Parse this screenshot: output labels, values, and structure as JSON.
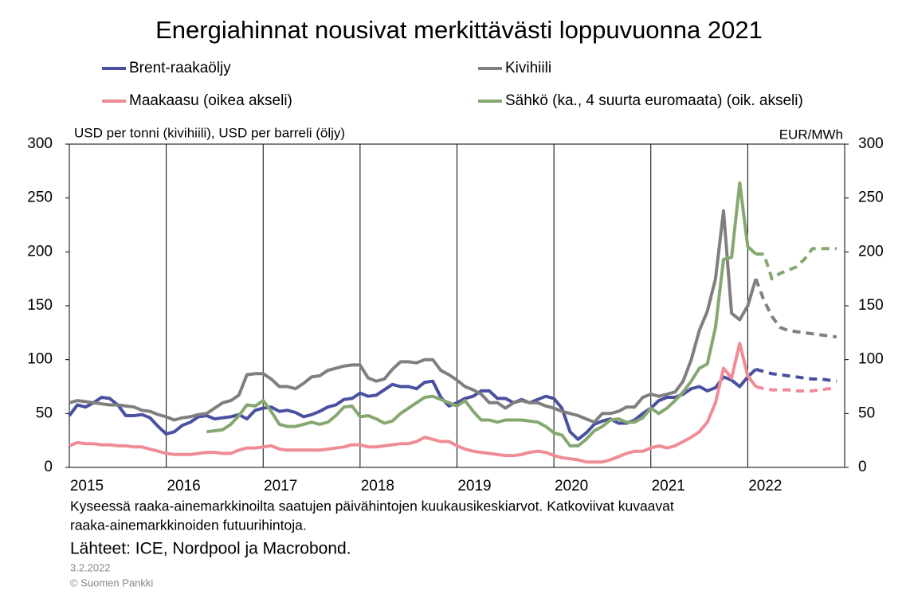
{
  "chart_data": {
    "type": "line",
    "title": "Energiahinnat nousivat merkittävästi loppuvuonna 2021",
    "ylabel": "USD per tonni (kivihiili), USD per barreli (öljy)",
    "y2label": "EUR/MWh",
    "notes": [
      "Kyseessä raaka-ainemarkkinoilta  saatujen päivähintojen kuukausikeskiarvot.  Katkoviivat kuvaavat",
      "raaka-ainemarkkinoiden  futuurihintoja."
    ],
    "source": "Lähteet: ICE, Nordpool ja Macrobond.",
    "date": "3.2.2022",
    "copyright": "© Suomen  Pankki",
    "xlim": [
      2015,
      2023
    ],
    "xticks": [
      2015,
      2016,
      2017,
      2018,
      2019,
      2020,
      2021,
      2022
    ],
    "ylim": [
      0,
      300
    ],
    "yticks": [
      0,
      50,
      100,
      150,
      200,
      250,
      300
    ],
    "y2lim": [
      0,
      300
    ],
    "y2ticks": [
      0,
      50,
      100,
      150,
      200,
      250,
      300
    ],
    "grid": "x",
    "futures_from": 2022.083,
    "x": [
      2015,
      2015.083,
      2015.167,
      2015.25,
      2015.333,
      2015.417,
      2015.5,
      2015.583,
      2015.667,
      2015.75,
      2015.833,
      2015.917,
      2016,
      2016.083,
      2016.167,
      2016.25,
      2016.333,
      2016.417,
      2016.5,
      2016.583,
      2016.667,
      2016.75,
      2016.833,
      2016.917,
      2017,
      2017.083,
      2017.167,
      2017.25,
      2017.333,
      2017.417,
      2017.5,
      2017.583,
      2017.667,
      2017.75,
      2017.833,
      2017.917,
      2018,
      2018.083,
      2018.167,
      2018.25,
      2018.333,
      2018.417,
      2018.5,
      2018.583,
      2018.667,
      2018.75,
      2018.833,
      2018.917,
      2019,
      2019.083,
      2019.167,
      2019.25,
      2019.333,
      2019.417,
      2019.5,
      2019.583,
      2019.667,
      2019.75,
      2019.833,
      2019.917,
      2020,
      2020.083,
      2020.167,
      2020.25,
      2020.333,
      2020.417,
      2020.5,
      2020.583,
      2020.667,
      2020.75,
      2020.833,
      2020.917,
      2021,
      2021.083,
      2021.167,
      2021.25,
      2021.333,
      2021.417,
      2021.5,
      2021.583,
      2021.667,
      2021.75,
      2021.833,
      2021.917,
      2022,
      2022.083,
      2022.167,
      2022.25,
      2022.333,
      2022.417,
      2022.5,
      2022.583,
      2022.667,
      2022.75,
      2022.833,
      2022.917
    ],
    "series": [
      {
        "name": "Brent-raakaöljy",
        "color": "#4a50a0",
        "values": [
          48,
          58,
          56,
          60,
          65,
          64,
          58,
          48,
          48,
          49,
          46,
          38,
          31,
          33,
          39,
          42,
          47,
          48,
          45,
          46,
          47,
          49,
          45,
          53,
          55,
          56,
          52,
          53,
          51,
          47,
          49,
          52,
          56,
          58,
          63,
          64,
          69,
          66,
          67,
          72,
          77,
          75,
          75,
          73,
          79,
          80,
          65,
          57,
          60,
          64,
          66,
          71,
          71,
          64,
          64,
          60,
          63,
          60,
          63,
          66,
          64,
          55,
          33,
          26,
          32,
          40,
          43,
          45,
          41,
          41,
          44,
          50,
          55,
          62,
          65,
          65,
          68,
          73,
          75,
          71,
          74,
          84,
          81,
          75,
          84,
          91,
          89,
          87,
          86,
          85,
          84,
          83,
          82,
          82,
          81,
          80
        ]
      },
      {
        "name": "Kivihiili",
        "color": "#7f7f7f",
        "values": [
          60,
          62,
          61,
          60,
          59,
          58,
          58,
          57,
          56,
          53,
          52,
          49,
          47,
          44,
          46,
          47,
          49,
          50,
          55,
          60,
          62,
          67,
          86,
          87,
          87,
          82,
          75,
          75,
          73,
          78,
          84,
          85,
          90,
          92,
          94,
          95,
          95,
          83,
          80,
          82,
          91,
          98,
          98,
          97,
          100,
          100,
          90,
          86,
          81,
          75,
          72,
          68,
          60,
          60,
          55,
          60,
          62,
          60,
          60,
          57,
          55,
          52,
          50,
          48,
          45,
          42,
          50,
          50,
          52,
          56,
          56,
          65,
          68,
          66,
          68,
          70,
          80,
          100,
          127,
          145,
          175,
          238,
          143,
          137,
          150,
          175,
          155,
          140,
          130,
          127,
          126,
          125,
          124,
          123,
          122,
          121
        ]
      },
      {
        "name": "Maakaasu (oikea akseli)",
        "color": "#f08c96",
        "axis": "y2",
        "values": [
          20,
          23,
          22,
          22,
          21,
          21,
          20,
          20,
          19,
          19,
          17,
          15,
          13,
          12,
          12,
          12,
          13,
          14,
          14,
          13,
          13,
          16,
          18,
          18,
          19,
          20,
          17,
          16,
          16,
          16,
          16,
          16,
          17,
          18,
          19,
          21,
          21,
          19,
          19,
          20,
          21,
          22,
          22,
          24,
          28,
          26,
          24,
          24,
          20,
          17,
          15,
          14,
          13,
          12,
          11,
          11,
          12,
          14,
          15,
          14,
          11,
          9,
          8,
          7,
          5,
          5,
          5,
          7,
          10,
          13,
          15,
          15,
          18,
          20,
          18,
          20,
          24,
          28,
          33,
          42,
          60,
          92,
          83,
          115,
          85,
          75,
          73,
          72,
          72,
          72,
          71,
          71,
          71,
          72,
          73,
          73
        ]
      },
      {
        "name": "Sähkö (ka., 4 suurta euromaata) (oik. akseli)",
        "color": "#84a870",
        "axis": "y2",
        "values": [
          null,
          null,
          null,
          null,
          null,
          null,
          null,
          null,
          null,
          null,
          null,
          null,
          null,
          null,
          null,
          null,
          null,
          33,
          34,
          35,
          40,
          48,
          58,
          57,
          62,
          52,
          40,
          38,
          38,
          40,
          42,
          40,
          42,
          48,
          56,
          57,
          47,
          48,
          45,
          41,
          43,
          50,
          55,
          60,
          65,
          66,
          63,
          60,
          57,
          62,
          52,
          44,
          44,
          42,
          44,
          44,
          44,
          43,
          42,
          38,
          32,
          30,
          20,
          20,
          26,
          34,
          38,
          44,
          45,
          42,
          42,
          46,
          55,
          50,
          55,
          62,
          70,
          80,
          92,
          96,
          130,
          193,
          195,
          264,
          205,
          198,
          198,
          175,
          180,
          183,
          186,
          193,
          203,
          203,
          203,
          203
        ]
      }
    ]
  }
}
